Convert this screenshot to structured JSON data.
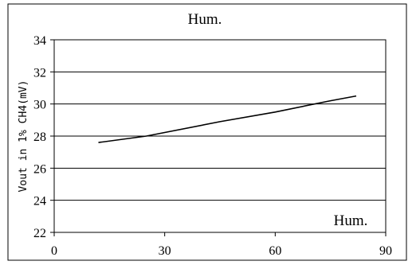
{
  "chart_data": {
    "type": "line",
    "title": "Hum.",
    "xlabel": "Hum.",
    "ylabel": "Vout in 1% CH4(mV)",
    "xlim": [
      0,
      90
    ],
    "ylim": [
      22,
      34
    ],
    "x_ticks": [
      0,
      30,
      60,
      90
    ],
    "y_ticks": [
      22,
      24,
      26,
      28,
      30,
      32,
      34
    ],
    "x_tick_labels": [
      "0",
      "30",
      "60",
      "90"
    ],
    "y_tick_labels": [
      "22",
      "24",
      "26",
      "28",
      "30",
      "32",
      "34"
    ],
    "grid": "horizontal",
    "series": [
      {
        "x": [
          12,
          25,
          45,
          60,
          75,
          82
        ],
        "y": [
          27.6,
          28.0,
          28.9,
          29.5,
          30.2,
          30.5
        ]
      }
    ],
    "colors": {
      "line": "#000000",
      "grid": "#000000",
      "frame": "#000000"
    }
  }
}
